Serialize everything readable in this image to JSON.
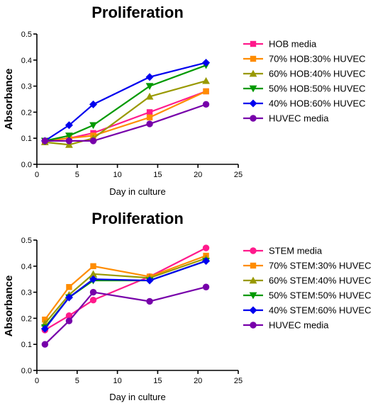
{
  "chart_data": [
    {
      "type": "line",
      "title": "Proliferation",
      "xlabel": "Day in culture",
      "ylabel": "Absorbance",
      "xlim": [
        0,
        25
      ],
      "ylim": [
        0,
        0.5
      ],
      "xticks": [
        "0",
        "5",
        "10",
        "15",
        "20",
        "25"
      ],
      "yticks": [
        "0.0",
        "0.1",
        "0.2",
        "0.3",
        "0.4",
        "0.5"
      ],
      "grid": false,
      "legend": "right",
      "x": [
        1,
        4,
        7,
        14,
        21
      ],
      "series": [
        {
          "name": "HOB media",
          "color": "#ff1a8c",
          "marker": "square",
          "values": [
            0.09,
            0.1,
            0.12,
            0.2,
            0.28
          ]
        },
        {
          "name": "70% HOB:30% HUVEC",
          "color": "#ff8c00",
          "marker": "square",
          "values": [
            0.09,
            0.1,
            0.11,
            0.18,
            0.28
          ]
        },
        {
          "name": "60% HOB:40% HUVEC",
          "color": "#999900",
          "marker": "triangle-up",
          "values": [
            0.085,
            0.075,
            0.1,
            0.26,
            0.32
          ]
        },
        {
          "name": "50% HOB:50% HUVEC",
          "color": "#009900",
          "marker": "triangle-down",
          "values": [
            0.09,
            0.11,
            0.15,
            0.3,
            0.38
          ]
        },
        {
          "name": "40% HOB:60% HUVEC",
          "color": "#0000ee",
          "marker": "diamond",
          "values": [
            0.09,
            0.15,
            0.23,
            0.335,
            0.39
          ]
        },
        {
          "name": "HUVEC media",
          "color": "#7700aa",
          "marker": "circle",
          "values": [
            0.09,
            0.09,
            0.09,
            0.155,
            0.23
          ]
        }
      ]
    },
    {
      "type": "line",
      "title": "Proliferation",
      "xlabel": "Day in culture",
      "ylabel": "Absorbance",
      "xlim": [
        0,
        25
      ],
      "ylim": [
        0,
        0.5
      ],
      "xticks": [
        "0",
        "5",
        "10",
        "15",
        "20",
        "25"
      ],
      "yticks": [
        "0.0",
        "0.1",
        "0.2",
        "0.3",
        "0.4",
        "0.5"
      ],
      "grid": false,
      "legend": "right",
      "x": [
        1,
        4,
        7,
        14,
        21
      ],
      "series": [
        {
          "name": "STEM media",
          "color": "#ff1a8c",
          "marker": "circle",
          "values": [
            0.155,
            0.21,
            0.27,
            0.36,
            0.47
          ]
        },
        {
          "name": "70% STEM:30% HUVEC",
          "color": "#ff8c00",
          "marker": "square",
          "values": [
            0.195,
            0.32,
            0.4,
            0.36,
            0.44
          ]
        },
        {
          "name": "60% STEM:40% HUVEC",
          "color": "#999900",
          "marker": "triangle-up",
          "values": [
            0.18,
            0.29,
            0.37,
            0.355,
            0.43
          ]
        },
        {
          "name": "50% STEM:50% HUVEC",
          "color": "#009900",
          "marker": "triangle-down",
          "values": [
            0.165,
            0.28,
            0.345,
            0.345,
            0.42
          ]
        },
        {
          "name": "40% STEM:60% HUVEC",
          "color": "#0000ee",
          "marker": "diamond",
          "values": [
            0.16,
            0.28,
            0.35,
            0.345,
            0.42
          ]
        },
        {
          "name": "HUVEC media",
          "color": "#7700aa",
          "marker": "circle",
          "values": [
            0.1,
            0.19,
            0.3,
            0.265,
            0.32
          ]
        }
      ]
    }
  ]
}
